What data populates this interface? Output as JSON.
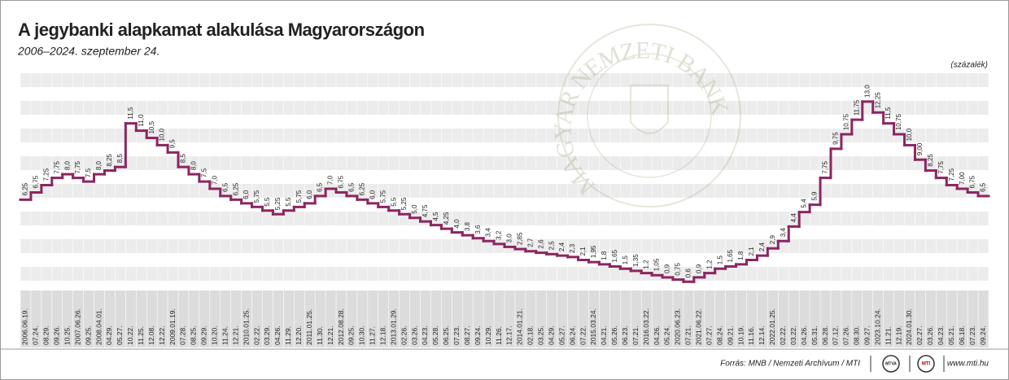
{
  "chart_data": {
    "type": "step",
    "title": "A jegybanki alapkamat alakulása Magyarországon",
    "subtitle": "2006–2024. szeptember 24.",
    "unit_label": "(százalék)",
    "watermark": "MAGYAR NEMZETI BANK",
    "color": "#8c2660",
    "ylim": [
      0,
      14
    ],
    "categories": [
      "2006.06.19.",
      "07.24.",
      "08.29.",
      "09.26.",
      "10.25.",
      "2007.06.26.",
      "09.25.",
      "2008.04.01.",
      "04.29.",
      "05.27.",
      "10.22.",
      "11.25.",
      "12.08.",
      "12.22.",
      "2009.01.19.",
      "07.28.",
      "08.25.",
      "09.29.",
      "10.20.",
      "11.24.",
      "12.21.",
      "2010.01.25.",
      "02.22.",
      "03.29.",
      "04.26.",
      "11.29.",
      "12.20.",
      "2011.01.25.",
      "11.30.",
      "12.21.",
      "2012.08.28.",
      "09.25.",
      "10.30.",
      "11.27.",
      "12.18.",
      "2013.01.29.",
      "02.26.",
      "03.26.",
      "04.23.",
      "05.28.",
      "06.25.",
      "07.23.",
      "08.27.",
      "09.24.",
      "10.29.",
      "11.26.",
      "12.17.",
      "2014.01.21.",
      "02.18.",
      "03.25.",
      "04.29.",
      "05.27.",
      "06.24.",
      "07.22.",
      "2015.03.24.",
      "04.21.",
      "05.26.",
      "06.23.",
      "07.21.",
      "2016.03.22.",
      "04.26.",
      "05.24.",
      "2020.06.23.",
      "07.21.",
      "2021.06.22.",
      "07.27.",
      "08.24.",
      "09.21.",
      "10.19.",
      "11.16.",
      "12.14.",
      "2022.01.25.",
      "02.22.",
      "03.22.",
      "04.26.",
      "05.31.",
      "06.28.",
      "07.12.",
      "07.26.",
      "08.30.",
      "09.27.",
      "2023.10.24.",
      "11.21.",
      "12.19.",
      "2024.01.30.",
      "02.27.",
      "03.26.",
      "04.23.",
      "05.21.",
      "06.18.",
      "07.23.",
      "09.24."
    ],
    "values": [
      6.25,
      6.75,
      7.25,
      7.75,
      8.0,
      7.75,
      7.5,
      8.0,
      8.25,
      8.5,
      11.5,
      11.0,
      10.5,
      10.0,
      9.5,
      8.5,
      8.0,
      7.5,
      7.0,
      6.5,
      6.25,
      6.0,
      5.75,
      5.5,
      5.25,
      5.5,
      5.75,
      6.0,
      6.5,
      7.0,
      6.75,
      6.5,
      6.25,
      6.0,
      5.75,
      5.5,
      5.25,
      5.0,
      4.75,
      4.5,
      4.25,
      4.0,
      3.8,
      3.6,
      3.4,
      3.2,
      3.0,
      2.85,
      2.7,
      2.6,
      2.5,
      2.4,
      2.3,
      2.1,
      1.95,
      1.8,
      1.65,
      1.5,
      1.35,
      1.2,
      1.05,
      0.9,
      0.75,
      0.6,
      0.9,
      1.2,
      1.5,
      1.65,
      1.8,
      2.1,
      2.4,
      2.9,
      3.4,
      4.4,
      5.4,
      5.9,
      7.75,
      9.75,
      10.75,
      11.75,
      13.0,
      12.25,
      11.5,
      10.75,
      10.0,
      9.0,
      8.25,
      7.75,
      7.25,
      7.0,
      6.75,
      6.5
    ],
    "value_labels": [
      "6,25",
      "6,75",
      "7,25",
      "7,75",
      "8,0",
      "7,75",
      "7,5",
      "8,0",
      "8,25",
      "8,5",
      "11,5",
      "11,0",
      "10,5",
      "10,0",
      "9,5",
      "8,5",
      "8,0",
      "7,5",
      "7,0",
      "6,5",
      "6,25",
      "6,0",
      "5,75",
      "5,5",
      "5,25",
      "5,5",
      "5,75",
      "6,0",
      "6,5",
      "7,0",
      "6,75",
      "6,5",
      "6,25",
      "6,0",
      "5,75",
      "5,5",
      "5,25",
      "5,0",
      "4,75",
      "4,5",
      "4,25",
      "4,0",
      "3,8",
      "3,6",
      "3,4",
      "3,2",
      "3,0",
      "2,85",
      "2,7",
      "2,6",
      "2,5",
      "2,4",
      "2,3",
      "2,1",
      "1,95",
      "1,8",
      "1,65",
      "1,5",
      "1,35",
      "1,2",
      "1,05",
      "0,9",
      "0,75",
      "0,6",
      "0,9",
      "1,2",
      "1,5",
      "1,65",
      "1,8",
      "2,1",
      "2,4",
      "2,9",
      "3,4",
      "4,4",
      "5,4",
      "5,9",
      "7,75",
      "9,75",
      "10,75",
      "11,75",
      "13,0",
      "12,25",
      "11,5",
      "10,75",
      "10,0",
      "9,00",
      "8,25",
      "7,75",
      "7,25",
      "7,00",
      "6,75",
      "6,5"
    ]
  },
  "footer": {
    "source": "Forrás: MNB / Nemzeti Archívum / MTI",
    "logo_1": "MTVA",
    "logo_2": "MTI",
    "url": "www.mti.hu"
  }
}
